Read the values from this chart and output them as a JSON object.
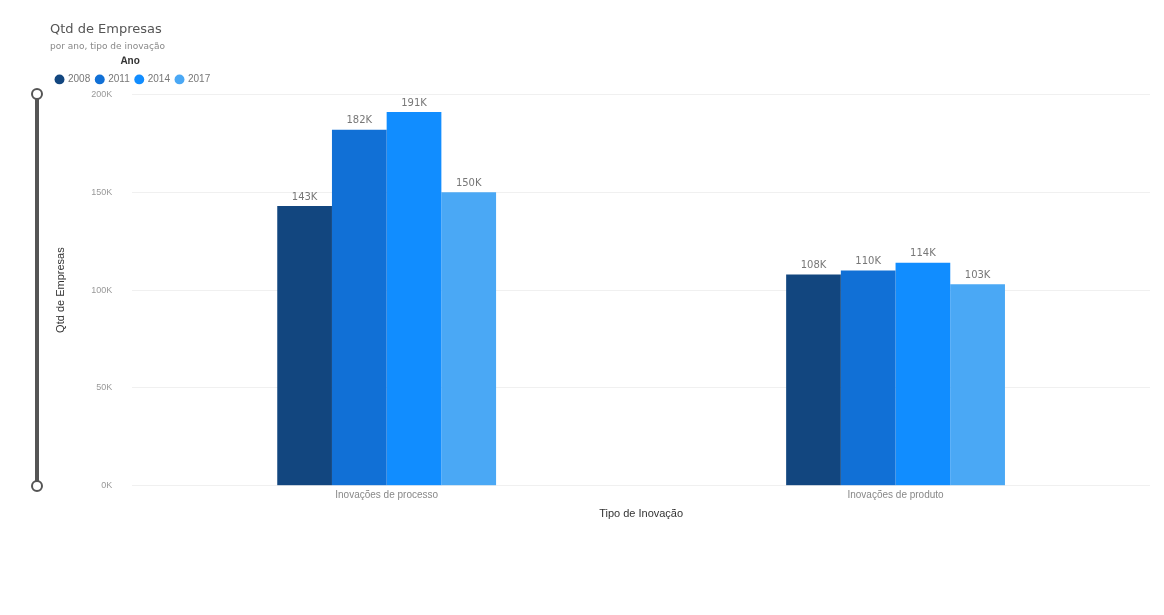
{
  "chart_data": {
    "type": "bar",
    "title": "Qtd de Empresas",
    "subtitle": "por ano, tipo de inovação",
    "xlabel": "Tipo de Inovação",
    "ylabel": "Qtd de Empresas",
    "legend_title": "Ano",
    "legend": "top left",
    "grid": "y",
    "categories": [
      "Inovações de processo",
      "Inovações de produto"
    ],
    "series": [
      {
        "name": "2008",
        "color": "#12467f",
        "values": [
          143000,
          108000
        ],
        "value_labels": [
          "143K",
          "108K"
        ]
      },
      {
        "name": "2011",
        "color": "#1170d6",
        "values": [
          182000,
          110000
        ],
        "value_labels": [
          "182K",
          "110K"
        ]
      },
      {
        "name": "2014",
        "color": "#118dff",
        "values": [
          191000,
          114000
        ],
        "value_labels": [
          "191K",
          "114K"
        ]
      },
      {
        "name": "2017",
        "color": "#4aa8f5",
        "values": [
          150000,
          103000
        ],
        "value_labels": [
          "150K",
          "103K"
        ]
      }
    ],
    "ylim": [
      0,
      200000
    ],
    "yticks": [
      {
        "value": 0,
        "label": "0K"
      },
      {
        "value": 50000,
        "label": "50K"
      },
      {
        "value": 100000,
        "label": "100K"
      },
      {
        "value": 150000,
        "label": "150K"
      },
      {
        "value": 200000,
        "label": "200K"
      }
    ]
  }
}
